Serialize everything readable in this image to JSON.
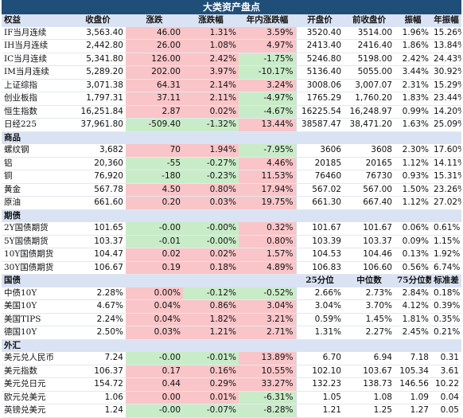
{
  "title": "大类资产盘点",
  "header": [
    "权益",
    "收盘价",
    "涨跌",
    "涨跌幅",
    "年内涨跌幅",
    "开盘价",
    "前收盘价",
    "振幅",
    "年振幅"
  ],
  "equity": [
    [
      "IF当月连续",
      "3,563.40",
      "46.00",
      "1.31%",
      "3.59%",
      "3520.40",
      "3514.00",
      "1.96%",
      "15.26%"
    ],
    [
      "IH当月连续",
      "2,442.80",
      "26.00",
      "1.08%",
      "4.97%",
      "2413.40",
      "2416.40",
      "1.86%",
      "13.84%"
    ],
    [
      "IC当月连续",
      "5,341.80",
      "126.00",
      "2.42%",
      "-1.75%",
      "5246.80",
      "5198.00",
      "2.42%",
      "24.43%"
    ],
    [
      "IM当月连续",
      "5,289.20",
      "202.00",
      "3.97%",
      "-10.17%",
      "5136.40",
      "5055.00",
      "3.44%",
      "30.92%"
    ],
    [
      "上证综指",
      "3,071.38",
      "64.31",
      "2.14%",
      "3.24%",
      "3008.06",
      "3,007.07",
      "2.31%",
      "15.29%"
    ],
    [
      "创业板指",
      "1,797.31",
      "37.11",
      "2.11%",
      "-4.97%",
      "1765.29",
      "1,760.20",
      "1.83%",
      "23.44%"
    ],
    [
      "恒生指数",
      "16,251.84",
      "2.87",
      "0.02%",
      "-4.67%",
      "16225.54",
      "16,248.97",
      "0.99%",
      "14.20%"
    ],
    [
      "日经225",
      "37,961.80",
      "-509.40",
      "-1.32%",
      "13.44%",
      "38587.47",
      "38,471.20",
      "1.63%",
      "25.09%"
    ]
  ],
  "commodity_label": "商品",
  "commodity": [
    [
      "螺纹钢",
      "3,682",
      "70",
      "1.94%",
      "-7.95%",
      "3606",
      "3608",
      "2.30%",
      "17.60%"
    ],
    [
      "铝",
      "20,360",
      "-55",
      "-0.27%",
      "4.46%",
      "20185",
      "20165",
      "1.12%",
      "14.11%"
    ],
    [
      "铜",
      "76,920",
      "-180",
      "-0.23%",
      "11.53%",
      "76460",
      "76730",
      "0.93%",
      "15.31%"
    ],
    [
      "黄金",
      "567.78",
      "4.50",
      "0.80%",
      "17.94%",
      "567.02",
      "567.00",
      "1.50%",
      "23.26%"
    ],
    [
      "原油",
      "661.60",
      "0.20",
      "0.03%",
      "19.75%",
      "661.30",
      "667.40",
      "1.12%",
      "27.02%"
    ]
  ],
  "futures_label": "期债",
  "futures": [
    [
      "2Y国债期货",
      "101.65",
      "-0.00",
      "-0.00%",
      "0.32%",
      "101.67",
      "101.67",
      "0.06%",
      "0.61%"
    ],
    [
      "5Y国债期货",
      "103.37",
      "-0.01",
      "-0.00%",
      "0.80%",
      "103.39",
      "103.37",
      "0.09%",
      "1.15%"
    ],
    [
      "10Y国债期货",
      "104.47",
      "0.02",
      "0.02%",
      "1.57%",
      "104.53",
      "104.46",
      "0.13%",
      "1.92%"
    ],
    [
      "30Y国债期货",
      "106.67",
      "0.19",
      "0.18%",
      "4.89%",
      "106.83",
      "106.60",
      "0.56%",
      "6.74%"
    ]
  ],
  "bonds_header": [
    "国债",
    "",
    "",
    "",
    "",
    "25分位",
    "中位数",
    "75分位数",
    "标准差"
  ],
  "bonds": [
    [
      "中债10Y",
      "2.28%",
      "0.00%",
      "-0.12%",
      "-0.52%",
      "2.66%",
      "2.73%",
      "2.84%",
      "0.18%"
    ],
    [
      "美国10Y",
      "4.67%",
      "0.04%",
      "0.86%",
      "3.04%",
      "3.04%",
      "3.70%",
      "4.12%",
      "0.39%"
    ],
    [
      "美国TIPS",
      "2.24%",
      "0.04%",
      "1.82%",
      "3.21%",
      "0.59%",
      "1.45%",
      "1.81%",
      "0.35%"
    ],
    [
      "德国10Y",
      "2.50%",
      "0.03%",
      "1.21%",
      "2.71%",
      "1.31%",
      "2.27%",
      "2.45%",
      "0.21%"
    ]
  ],
  "fx_label": "外汇",
  "fx": [
    [
      "美元兑人民币",
      "7.24",
      "-0.00",
      "-0.01%",
      "13.89%",
      "6.70",
      "6.94",
      "7.18",
      "0.31"
    ],
    [
      "美元指数",
      "106.37",
      "0.17",
      "0.16%",
      "10.55%",
      "102.10",
      "103.67",
      "105.34",
      "3.61"
    ],
    [
      "美元兑日元",
      "154.72",
      "0.44",
      "0.29%",
      "33.27%",
      "132.23",
      "138.73",
      "146.56",
      "10.22"
    ],
    [
      "欧元兑美元",
      "1.06",
      "0.00",
      "0.01%",
      "-6.31%",
      "1.05",
      "1.08",
      "1.09",
      "0.04"
    ],
    [
      "英镑兑美元",
      "1.24",
      "-0.00",
      "-0.07%",
      "-8.28%",
      "1.21",
      "1.25",
      "1.27",
      "0.05"
    ]
  ],
  "colors": {
    "up": "#f9c5c8",
    "down": "#c9ecc8",
    "header": "#dae3f3",
    "title": "#1f4e79"
  }
}
